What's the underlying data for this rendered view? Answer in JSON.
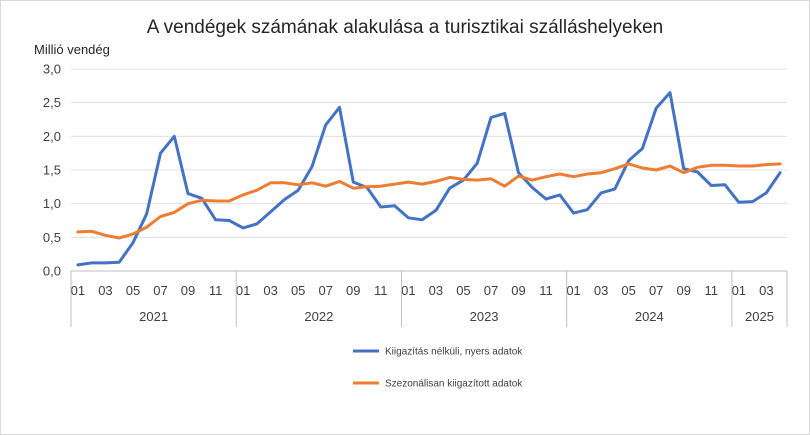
{
  "chart_data": {
    "type": "line",
    "title": "A vendégek számának alakulása a turisztikai szálláshelyeken",
    "ylabel": "Millió vendég",
    "xlabel": "",
    "ylim": [
      0,
      3
    ],
    "y_ticks": [
      "0,0",
      "0,5",
      "1,0",
      "1,5",
      "2,0",
      "2,5",
      "3,0"
    ],
    "y_tick_values": [
      0,
      0.5,
      1,
      1.5,
      2,
      2.5,
      3
    ],
    "grid": true,
    "legend_position": "bottom",
    "month_tick_labels": [
      "01",
      "03",
      "05",
      "07",
      "09",
      "11",
      "01",
      "03",
      "05",
      "07",
      "09",
      "11",
      "01",
      "03",
      "05",
      "07",
      "09",
      "11",
      "01",
      "03",
      "05",
      "07",
      "09",
      "11",
      "01",
      "03"
    ],
    "years": [
      {
        "label": "2021",
        "months": 12
      },
      {
        "label": "2022",
        "months": 12
      },
      {
        "label": "2023",
        "months": 12
      },
      {
        "label": "2024",
        "months": 12
      },
      {
        "label": "2025",
        "months": 4
      }
    ],
    "x": [
      "2021-01",
      "2021-02",
      "2021-03",
      "2021-04",
      "2021-05",
      "2021-06",
      "2021-07",
      "2021-08",
      "2021-09",
      "2021-10",
      "2021-11",
      "2021-12",
      "2022-01",
      "2022-02",
      "2022-03",
      "2022-04",
      "2022-05",
      "2022-06",
      "2022-07",
      "2022-08",
      "2022-09",
      "2022-10",
      "2022-11",
      "2022-12",
      "2023-01",
      "2023-02",
      "2023-03",
      "2023-04",
      "2023-05",
      "2023-06",
      "2023-07",
      "2023-08",
      "2023-09",
      "2023-10",
      "2023-11",
      "2023-12",
      "2024-01",
      "2024-02",
      "2024-03",
      "2024-04",
      "2024-05",
      "2024-06",
      "2024-07",
      "2024-08",
      "2024-09",
      "2024-10",
      "2024-11",
      "2024-12",
      "2025-01",
      "2025-02",
      "2025-03",
      "2025-04"
    ],
    "series": [
      {
        "name": "Kiigazítás nélküli, nyers adatok",
        "color": "#4472C4",
        "values": [
          0.09,
          0.12,
          0.12,
          0.13,
          0.42,
          0.85,
          1.75,
          2.0,
          1.15,
          1.08,
          0.76,
          0.75,
          0.64,
          0.7,
          0.88,
          1.06,
          1.2,
          1.55,
          2.17,
          2.43,
          1.32,
          1.24,
          0.95,
          0.97,
          0.79,
          0.76,
          0.9,
          1.23,
          1.35,
          1.6,
          2.28,
          2.34,
          1.46,
          1.24,
          1.07,
          1.13,
          0.86,
          0.91,
          1.16,
          1.22,
          1.64,
          1.82,
          2.42,
          2.65,
          1.52,
          1.47,
          1.27,
          1.28,
          1.02,
          1.03,
          1.16,
          1.46
        ]
      },
      {
        "name": "Szezonálisan kiigazított adatok",
        "color": "#ED7D31",
        "values": [
          0.58,
          0.59,
          0.53,
          0.49,
          0.55,
          0.65,
          0.81,
          0.87,
          1.0,
          1.05,
          1.04,
          1.04,
          1.13,
          1.2,
          1.31,
          1.31,
          1.28,
          1.31,
          1.26,
          1.33,
          1.23,
          1.25,
          1.26,
          1.29,
          1.32,
          1.29,
          1.33,
          1.39,
          1.36,
          1.35,
          1.37,
          1.26,
          1.41,
          1.35,
          1.4,
          1.44,
          1.4,
          1.44,
          1.46,
          1.52,
          1.59,
          1.53,
          1.5,
          1.56,
          1.46,
          1.54,
          1.57,
          1.57,
          1.56,
          1.56,
          1.58,
          1.59
        ]
      }
    ]
  }
}
